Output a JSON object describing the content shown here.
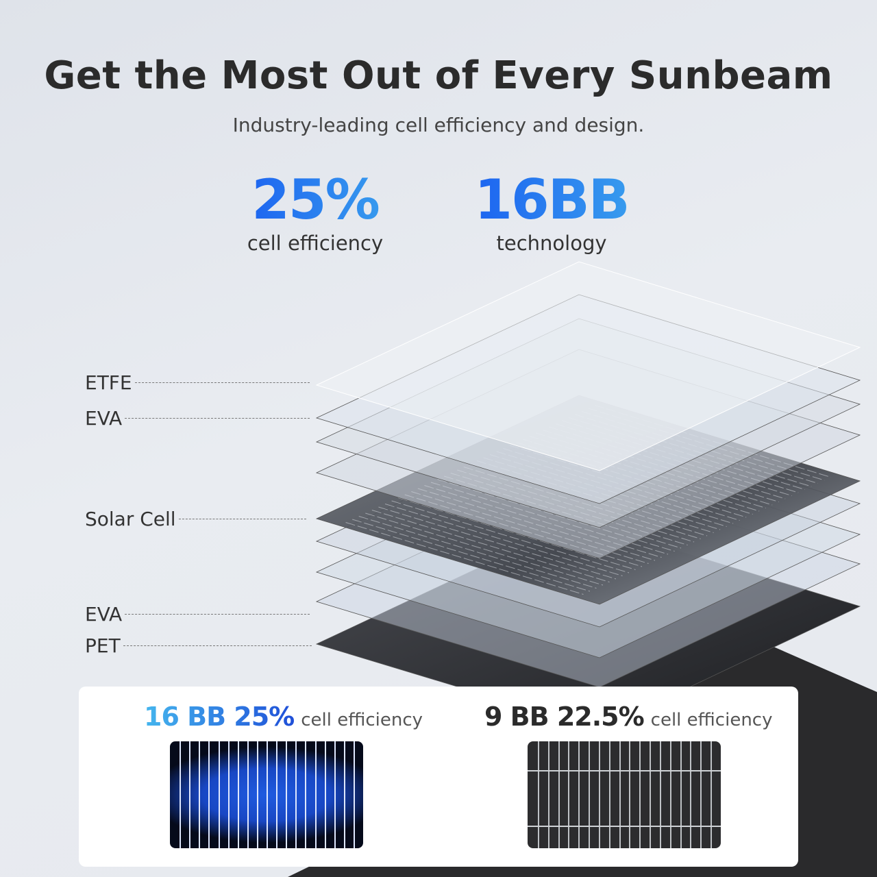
{
  "header": {
    "title": "Get the Most Out of Every Sunbeam",
    "subtitle": "Industry-leading cell efficiency and design."
  },
  "stats": [
    {
      "value": "25%",
      "label": "cell efficiency"
    },
    {
      "value": "16BB",
      "label": "technology"
    }
  ],
  "layers": [
    {
      "label": "ETFE"
    },
    {
      "label": "EVA"
    },
    {
      "label": "Solar Cell"
    },
    {
      "label": "EVA"
    },
    {
      "label": "PET"
    }
  ],
  "comparison": [
    {
      "highlight": "16 BB 25%",
      "label": "cell efficiency",
      "busbars": 16
    },
    {
      "highlight": "9 BB 22.5%",
      "label": "cell efficiency",
      "busbars": 9
    }
  ],
  "colors": {
    "accent_start": "#1a5ff0",
    "accent_end": "#3aa0ee",
    "text": "#2b2b2b"
  }
}
